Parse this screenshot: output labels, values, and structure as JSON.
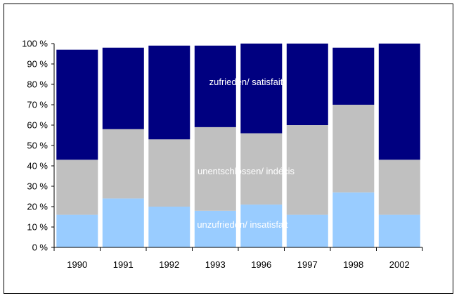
{
  "chart_data": {
    "type": "bar",
    "stacked": true,
    "categories": [
      "1990",
      "1991",
      "1992",
      "1993",
      "1996",
      "1997",
      "1998",
      "2002"
    ],
    "series": [
      {
        "name": "unzufrieden/ insatisfait",
        "color": "#99ccff",
        "values": [
          16,
          24,
          20,
          18,
          21,
          16,
          27,
          16
        ]
      },
      {
        "name": "unentschlossen/ indécis",
        "color": "#c0c0c0",
        "values": [
          27,
          34,
          33,
          41,
          35,
          44,
          43,
          27
        ]
      },
      {
        "name": "zufrieden/ satisfait",
        "color": "#000080",
        "values": [
          54,
          40,
          46,
          40,
          45,
          41,
          28,
          58
        ]
      }
    ],
    "yticks": [
      "0 %",
      "10 %",
      "20 %",
      "30 %",
      "40 %",
      "50 %",
      "60 %",
      "70 %",
      "80 %",
      "90 %",
      "100 %"
    ],
    "ylim": [
      0,
      100
    ],
    "title": "",
    "xlabel": "",
    "ylabel": "",
    "grid": false,
    "legend": "inline labels on chart"
  }
}
